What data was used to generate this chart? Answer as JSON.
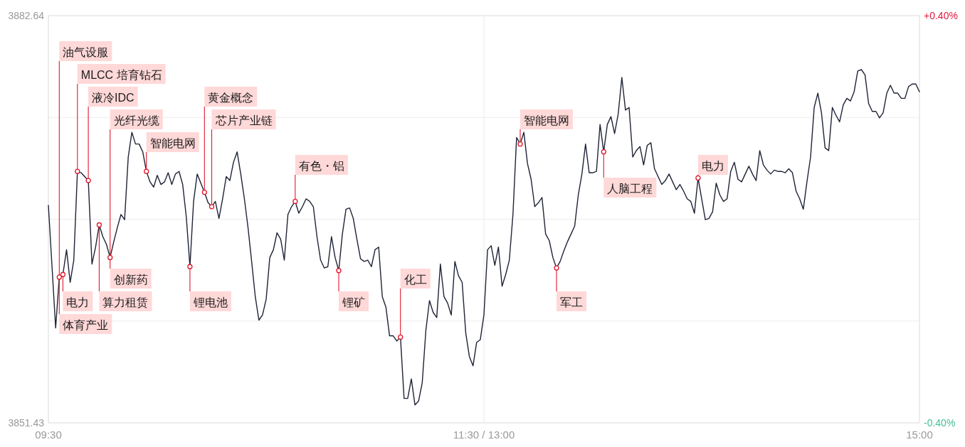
{
  "chart_data": {
    "type": "line",
    "categories": [
      "09:30",
      null,
      null,
      null,
      null,
      null,
      null,
      null,
      null,
      null,
      null,
      null,
      null,
      null,
      null,
      null,
      null,
      null,
      null,
      null,
      null,
      null,
      null,
      null,
      null,
      null,
      null,
      null,
      null,
      null,
      null,
      null,
      null,
      null,
      null,
      null,
      null,
      null,
      null,
      null,
      null,
      null,
      null,
      null,
      null,
      null,
      null,
      null,
      null,
      null,
      null,
      null,
      null,
      null,
      null,
      null,
      null,
      null,
      null,
      null,
      null,
      null,
      null,
      null,
      null,
      null,
      null,
      null,
      null,
      null,
      null,
      null,
      null,
      null,
      null,
      null,
      null,
      null,
      null,
      null,
      null,
      null,
      null,
      null,
      null,
      null,
      null,
      null,
      null,
      null,
      null,
      null,
      null,
      null,
      null,
      null,
      null,
      null,
      null,
      null,
      null,
      null,
      null,
      null,
      null,
      null,
      null,
      null,
      null,
      null,
      null,
      null,
      null,
      null,
      null,
      null,
      null,
      null,
      null,
      null,
      "11:30 / 13:00",
      null,
      null,
      null,
      null,
      null,
      null,
      null,
      null,
      null,
      null,
      null,
      null,
      null,
      null,
      null,
      null,
      null,
      null,
      null,
      null,
      null,
      null,
      null,
      null,
      null,
      null,
      null,
      null,
      null,
      null,
      null,
      null,
      null,
      null,
      null,
      null,
      null,
      null,
      null,
      null,
      null,
      null,
      null,
      null,
      null,
      null,
      null,
      null,
      null,
      null,
      null,
      null,
      null,
      null,
      null,
      null,
      null,
      null,
      null,
      null,
      null,
      null,
      null,
      null,
      null,
      null,
      null,
      null,
      null,
      null,
      null,
      null,
      null,
      null,
      null,
      null,
      null,
      null,
      null,
      null,
      null,
      null,
      null,
      null,
      null,
      null,
      null,
      null,
      null,
      null,
      null,
      null,
      null,
      null,
      null,
      null,
      null,
      null,
      null,
      null,
      null,
      null,
      null,
      null,
      null,
      null,
      null,
      null,
      null,
      null,
      null,
      null,
      null,
      null,
      null,
      null,
      null,
      null,
      null,
      "15:00"
    ],
    "series": [
      {
        "color": "#1f2336",
        "values": [
          3868.1,
          3863.4,
          3858.7,
          3862.6,
          3862.8,
          3864.7,
          3862.2,
          3863.9,
          3870.7,
          3870.6,
          3870.3,
          3870.0,
          3863.6,
          3864.9,
          3866.6,
          3865.7,
          3865.1,
          3864.1,
          3865.3,
          3866.4,
          3867.4,
          3867.0,
          3871.8,
          3873.7,
          3872.8,
          3872.8,
          3872.2,
          3870.7,
          3869.9,
          3869.5,
          3870.4,
          3869.7,
          3869.9,
          3870.6,
          3869.7,
          3870.5,
          3870.7,
          3869.7,
          3867.2,
          3863.4,
          3868.4,
          3870.5,
          3869.8,
          3869.1,
          3868.3,
          3868.0,
          3868.4,
          3867.1,
          3868.6,
          3870.3,
          3870.0,
          3871.4,
          3872.2,
          3870.5,
          3868.6,
          3866.4,
          3863.8,
          3861.1,
          3859.3,
          3859.7,
          3860.9,
          3864.1,
          3864.7,
          3866.0,
          3865.5,
          3863.9,
          3867.4,
          3868.0,
          3868.4,
          3867.5,
          3868.0,
          3868.6,
          3868.4,
          3868.0,
          3865.7,
          3863.9,
          3863.3,
          3863.4,
          3865.7,
          3864.1,
          3863.1,
          3865.9,
          3867.8,
          3867.9,
          3867.1,
          3865.5,
          3864.0,
          3863.8,
          3863.9,
          3863.4,
          3864.7,
          3864.9,
          3861.1,
          3860.3,
          3858.1,
          3858.1,
          3857.7,
          3858.0,
          3853.3,
          3853.3,
          3854.8,
          3852.8,
          3853.1,
          3854.5,
          3858.5,
          3860.8,
          3859.9,
          3859.5,
          3863.6,
          3861.1,
          3860.6,
          3859.7,
          3863.8,
          3862.7,
          3862.2,
          3858.3,
          3856.5,
          3855.8,
          3857.6,
          3857.8,
          3859.7,
          3864.7,
          3865.0,
          3863.5,
          3864.9,
          3861.9,
          3862.8,
          3863.9,
          3867.4,
          3873.3,
          3872.8,
          3873.7,
          3871.3,
          3870.1,
          3868.0,
          3868.3,
          3868.7,
          3865.9,
          3865.4,
          3864.1,
          3863.3,
          3863.8,
          3864.6,
          3865.3,
          3865.9,
          3866.5,
          3868.9,
          3870.5,
          3872.8,
          3870.6,
          3870.6,
          3870.7,
          3874.3,
          3872.2,
          3874.3,
          3874.9,
          3873.6,
          3875.1,
          3877.9,
          3875.4,
          3875.6,
          3871.8,
          3872.3,
          3872.6,
          3871.2,
          3872.7,
          3872.9,
          3870.9,
          3870.3,
          3869.7,
          3870.0,
          3870.5,
          3869.9,
          3869.3,
          3869.7,
          3869.2,
          3868.6,
          3868.4,
          3867.5,
          3870.2,
          3868.6,
          3867.0,
          3867.1,
          3867.6,
          3869.8,
          3868.9,
          3868.4,
          3868.6,
          3870.7,
          3871.4,
          3870.1,
          3869.9,
          3870.5,
          3871.1,
          3870.5,
          3870.0,
          3872.3,
          3871.2,
          3870.8,
          3870.5,
          3870.8,
          3870.7,
          3870.7,
          3870.6,
          3870.9,
          3870.6,
          3869.2,
          3868.6,
          3867.8,
          3869.9,
          3871.8,
          3875.6,
          3876.7,
          3875.2,
          3872.5,
          3872.3,
          3875.6,
          3875.0,
          3874.5,
          3875.8,
          3876.3,
          3876.1,
          3876.8,
          3878.4,
          3878.5,
          3878.1,
          3875.9,
          3875.3,
          3875.3,
          3874.8,
          3875.2,
          3876.7,
          3877.3,
          3876.7,
          3876.7,
          3876.3,
          3876.3,
          3877.2,
          3877.4,
          3877.4,
          3876.8
        ],
        "value_labels": [
          null,
          null,
          null,
          "油气设服",
          null,
          null,
          null,
          null,
          null,
          null,
          null,
          null,
          null,
          null,
          null,
          null,
          null,
          "光纤光缆",
          null,
          null,
          null,
          null,
          null,
          null,
          null,
          null,
          null,
          null,
          null,
          null,
          null,
          null,
          null,
          null,
          null,
          null,
          null,
          null,
          null,
          null,
          null,
          null,
          null,
          null,
          null,
          null,
          null,
          null,
          null,
          null,
          null,
          null,
          null,
          null,
          null,
          null,
          null,
          null,
          null,
          null,
          null,
          null,
          null,
          null,
          null,
          null,
          null,
          null,
          null,
          null,
          null,
          null,
          null,
          null,
          null,
          null,
          null,
          null,
          null,
          null,
          null,
          null,
          null,
          null,
          null,
          null,
          null,
          null,
          null,
          null,
          null,
          null,
          null,
          null,
          null,
          null,
          null,
          null,
          null,
          null,
          null,
          null,
          null,
          null,
          null,
          null,
          null,
          null,
          null,
          null,
          null,
          null,
          null,
          null,
          null,
          null,
          null,
          null,
          null,
          null,
          null,
          null,
          null,
          null,
          null,
          null,
          null,
          null,
          null,
          null,
          null,
          null,
          null,
          null,
          null,
          null,
          null,
          null,
          null,
          null,
          null,
          null,
          null,
          null,
          null,
          null,
          null,
          null,
          null,
          null,
          null,
          null,
          null,
          null,
          null,
          null,
          null,
          null,
          null,
          null,
          null,
          null,
          null,
          null,
          null,
          null,
          null,
          null,
          null,
          null,
          null,
          null,
          null,
          null,
          null,
          null,
          null,
          null,
          null,
          null,
          null,
          null,
          null,
          null,
          null,
          null,
          null,
          null,
          null,
          null,
          null,
          null,
          null,
          null,
          null,
          null,
          null,
          null,
          null,
          null,
          null,
          null,
          null,
          null,
          null,
          null,
          null,
          null,
          null,
          null,
          null,
          null,
          null,
          null,
          null,
          null,
          null,
          null,
          null,
          null,
          null,
          null,
          null,
          null,
          null,
          null,
          null,
          null,
          null,
          null,
          null,
          null,
          null,
          null,
          null,
          null,
          null,
          null,
          null,
          null,
          null
        ]
      },
      {
        "type": "scatter",
        "color": "#e0182d",
        "marker": "circle",
        "values": [
          null,
          null,
          null,
          3862.6,
          3862.8,
          null,
          null,
          null,
          3870.7,
          null,
          null,
          3870.0,
          null,
          null,
          3866.6,
          null,
          null,
          3864.1,
          null,
          null,
          null,
          null,
          null,
          null,
          null,
          null,
          null,
          3870.7,
          null,
          null,
          null,
          null,
          null,
          null,
          null,
          null,
          null,
          null,
          null,
          3863.4,
          null,
          null,
          null,
          3869.1,
          null,
          3868.0,
          null,
          null,
          null,
          null,
          null,
          null,
          null,
          null,
          null,
          null,
          null,
          null,
          null,
          null,
          null,
          null,
          null,
          null,
          null,
          null,
          null,
          null,
          3868.4,
          null,
          null,
          null,
          null,
          null,
          null,
          null,
          null,
          null,
          null,
          null,
          3863.1,
          null,
          null,
          null,
          null,
          null,
          null,
          null,
          null,
          null,
          null,
          null,
          null,
          null,
          null,
          null,
          null,
          3858.0,
          null,
          null,
          null,
          null,
          null,
          null,
          null,
          null,
          null,
          null,
          null,
          null,
          null,
          null,
          null,
          null,
          null,
          null,
          null,
          null,
          null,
          null,
          null,
          null,
          null,
          null,
          null,
          null,
          null,
          null,
          null,
          null,
          3872.8,
          null,
          null,
          null,
          null,
          null,
          null,
          null,
          null,
          null,
          3863.3,
          null,
          null,
          null,
          null,
          null,
          null,
          null,
          null,
          null,
          null,
          null,
          null,
          3872.2,
          null,
          null,
          null,
          null,
          null,
          null,
          null,
          null,
          null,
          null,
          null,
          null,
          null,
          null,
          null,
          null,
          null,
          null,
          null,
          null,
          null,
          null,
          null,
          null,
          null,
          3870.2,
          null,
          null,
          null,
          null,
          null,
          null,
          null,
          null,
          null,
          null,
          null,
          null,
          null,
          null,
          null,
          null,
          null,
          null,
          null,
          null,
          null,
          null,
          null,
          null,
          null,
          null,
          null,
          null,
          null,
          null,
          null,
          null,
          null,
          null,
          null,
          null,
          null,
          null,
          null,
          null,
          null,
          null,
          null,
          null,
          null,
          null,
          null,
          null,
          null,
          null,
          null,
          null,
          null,
          null,
          null,
          null,
          null,
          null,
          null,
          null,
          null
        ],
        "value_labels": [
          null,
          null,
          null,
          "体育产业",
          "电力",
          null,
          null,
          null,
          "MLCC 培育钻石",
          null,
          null,
          "液冷IDC",
          null,
          null,
          "算力租赁",
          null,
          null,
          "创新药",
          null,
          null,
          null,
          null,
          null,
          null,
          null,
          null,
          null,
          "智能电网",
          null,
          null,
          null,
          null,
          null,
          null,
          null,
          null,
          null,
          null,
          null,
          "锂电池",
          null,
          null,
          null,
          "黄金概念",
          null,
          "芯片产业链",
          null,
          null,
          null,
          null,
          null,
          null,
          null,
          null,
          null,
          null,
          null,
          null,
          null,
          null,
          null,
          null,
          null,
          null,
          null,
          null,
          null,
          null,
          "有色・铝",
          null,
          null,
          null,
          null,
          null,
          null,
          null,
          null,
          null,
          null,
          null,
          "锂矿",
          null,
          null,
          null,
          null,
          null,
          null,
          null,
          null,
          null,
          null,
          null,
          null,
          null,
          null,
          null,
          null,
          "化工",
          null,
          null,
          null,
          null,
          null,
          null,
          null,
          null,
          null,
          null,
          null,
          null,
          null,
          null,
          null,
          null,
          null,
          null,
          null,
          null,
          null,
          null,
          null,
          null,
          null,
          null,
          null,
          null,
          null,
          null,
          null,
          null,
          "智能电网",
          null,
          null,
          null,
          null,
          null,
          null,
          null,
          null,
          null,
          "军工",
          null,
          null,
          null,
          null,
          null,
          null,
          null,
          null,
          null,
          null,
          null,
          null,
          "人脑工程",
          null,
          null,
          null,
          null,
          null,
          null,
          null,
          null,
          null,
          null,
          null,
          null,
          null,
          null,
          null,
          null,
          null,
          null,
          null,
          null,
          null,
          null,
          null,
          null,
          null,
          "电力",
          null,
          null,
          null,
          null,
          null,
          null,
          null,
          null,
          null,
          null,
          null,
          null,
          null,
          null,
          null,
          null,
          null,
          null,
          null,
          null,
          null,
          null,
          null,
          null,
          null,
          null,
          null,
          null,
          null,
          null,
          null,
          null,
          null,
          null,
          null,
          null,
          null,
          null,
          null,
          null,
          null,
          null,
          null,
          null,
          null,
          null,
          null,
          null,
          null,
          null,
          null,
          null,
          null,
          null,
          null,
          null,
          null,
          null,
          null,
          null,
          null
        ]
      }
    ],
    "ylim": [
      3851.43,
      3882.64
    ],
    "yticks": [
      3851.43,
      {
        "value": 3859.23,
        "label": null
      },
      {
        "value": 3867.04,
        "label": null
      },
      {
        "value": 3874.84,
        "label": null
      },
      3882.64
    ],
    "y2lim": [
      -0.4,
      0.4
    ],
    "y2ticks": [
      {
        "value": -0.4,
        "label": "-0.40%"
      },
      {
        "value": 0.4,
        "label": "+0.40%"
      }
    ],
    "grid": true
  }
}
